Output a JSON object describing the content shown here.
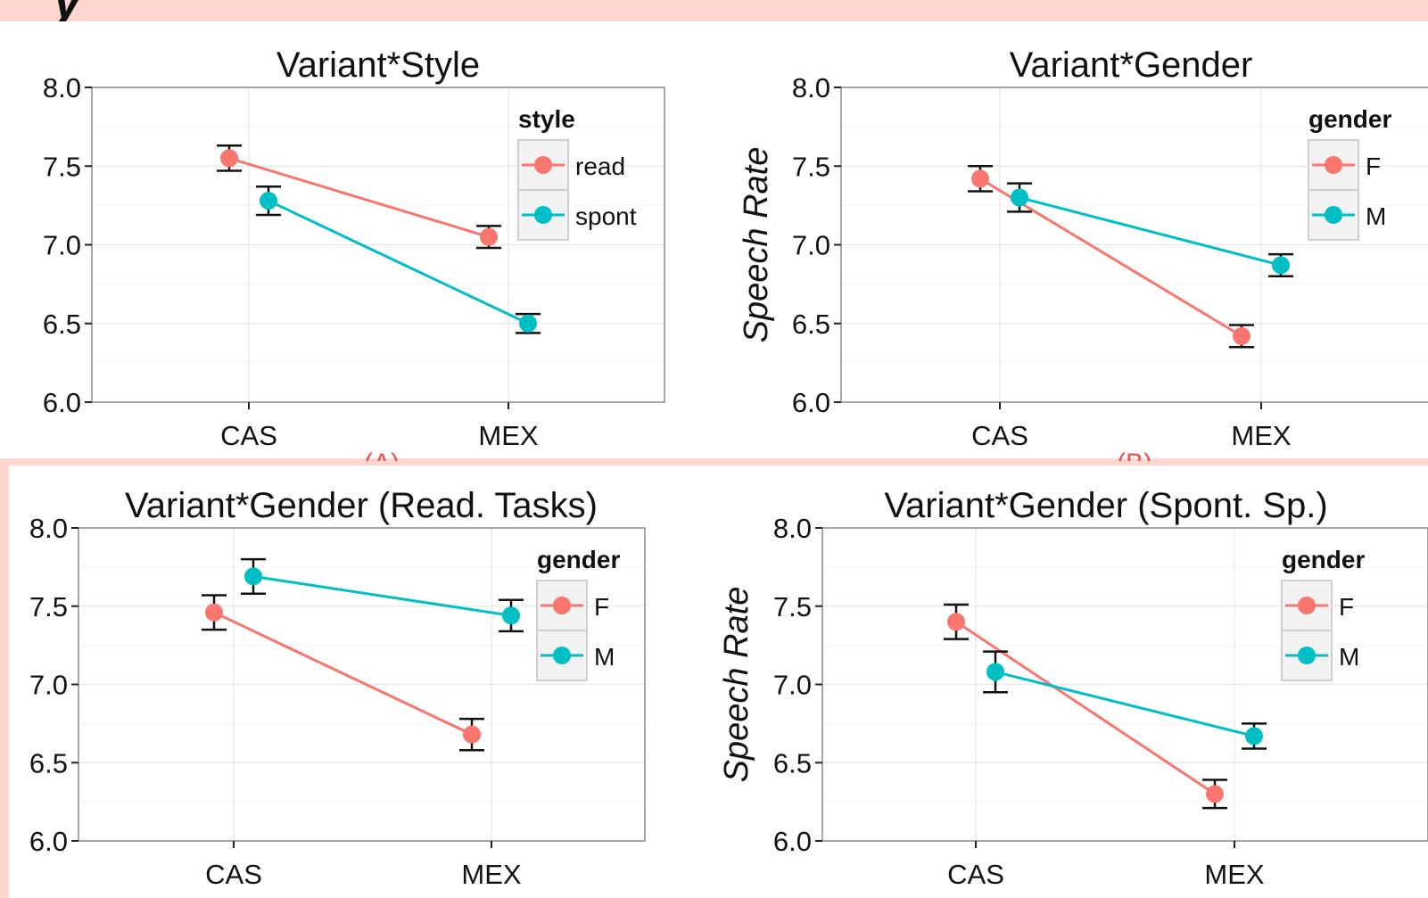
{
  "page": {
    "partial_heading": "y",
    "background": "#fdd6d0",
    "cutoff_marks": [
      "(A)",
      "(B)"
    ]
  },
  "colors": {
    "group1": "#f8766d",
    "group2": "#00bfc4"
  },
  "chart_data": [
    {
      "type": "line",
      "title": "Variant*Style",
      "ylabel": "",
      "categories": [
        "CAS",
        "MEX"
      ],
      "ylim": [
        6.0,
        8.0
      ],
      "yticks": [
        "6.0",
        "6.5",
        "7.0",
        "7.5",
        "8.0"
      ],
      "legend_title": "style",
      "legend_position": "right",
      "grid": true,
      "error_bars": true,
      "series": [
        {
          "name": "read",
          "values": [
            7.55,
            7.05
          ],
          "err": [
            0.08,
            0.07
          ]
        },
        {
          "name": "spont",
          "values": [
            7.28,
            6.5
          ],
          "err": [
            0.09,
            0.06
          ]
        }
      ]
    },
    {
      "type": "line",
      "title": "Variant*Gender",
      "ylabel": "Speech Rate",
      "categories": [
        "CAS",
        "MEX"
      ],
      "ylim": [
        6.0,
        8.0
      ],
      "yticks": [
        "6.0",
        "6.5",
        "7.0",
        "7.5",
        "8.0"
      ],
      "legend_title": "gender",
      "legend_position": "right",
      "grid": true,
      "error_bars": true,
      "series": [
        {
          "name": "F",
          "values": [
            7.42,
            6.42
          ],
          "err": [
            0.08,
            0.07
          ]
        },
        {
          "name": "M",
          "values": [
            7.3,
            6.87
          ],
          "err": [
            0.09,
            0.07
          ]
        }
      ]
    },
    {
      "type": "line",
      "title": "Variant*Gender (Read. Tasks)",
      "ylabel": "",
      "categories": [
        "CAS",
        "MEX"
      ],
      "ylim": [
        6.0,
        8.0
      ],
      "yticks": [
        "6.0",
        "6.5",
        "7.0",
        "7.5",
        "8.0"
      ],
      "legend_title": "gender",
      "legend_position": "right",
      "grid": true,
      "error_bars": true,
      "series": [
        {
          "name": "F",
          "values": [
            7.46,
            6.68
          ],
          "err": [
            0.11,
            0.1
          ]
        },
        {
          "name": "M",
          "values": [
            7.69,
            7.44
          ],
          "err": [
            0.11,
            0.1
          ]
        }
      ]
    },
    {
      "type": "line",
      "title": "Variant*Gender (Spont. Sp.)",
      "ylabel": "Speech Rate",
      "categories": [
        "CAS",
        "MEX"
      ],
      "ylim": [
        6.0,
        8.0
      ],
      "yticks": [
        "6.0",
        "6.5",
        "7.0",
        "7.5",
        "8.0"
      ],
      "legend_title": "gender",
      "legend_position": "right",
      "grid": true,
      "error_bars": true,
      "series": [
        {
          "name": "F",
          "values": [
            7.4,
            6.3
          ],
          "err": [
            0.11,
            0.09
          ]
        },
        {
          "name": "M",
          "values": [
            7.08,
            6.67
          ],
          "err": [
            0.13,
            0.08
          ]
        }
      ]
    }
  ]
}
